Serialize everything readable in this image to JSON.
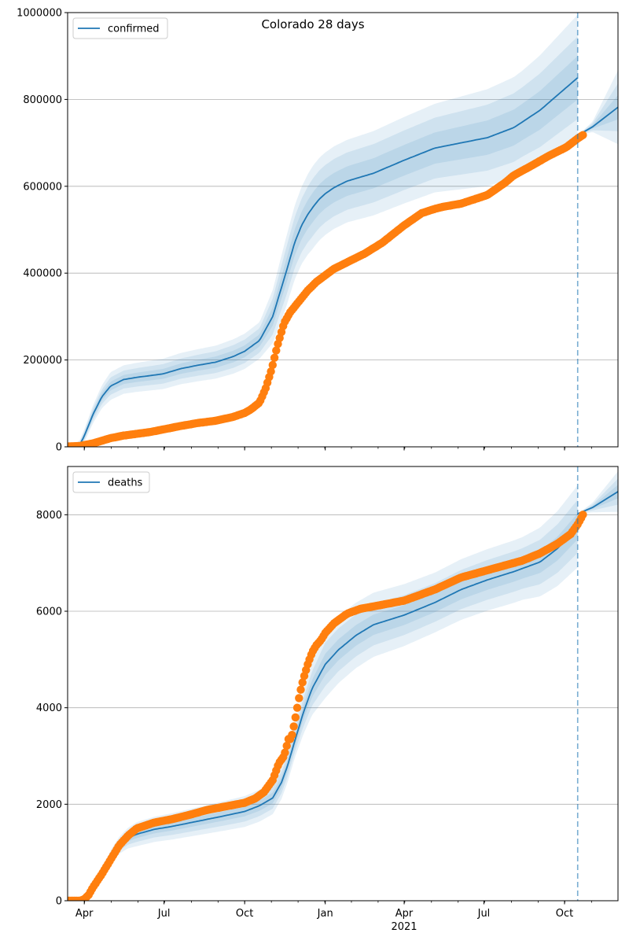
{
  "chart_data": [
    {
      "type": "line",
      "title": "Colorado 28 days",
      "legend": {
        "label": "confirmed",
        "placement": "top-left"
      },
      "xlabel": "",
      "ylabel": "",
      "ylim": [
        0,
        1000000
      ],
      "yticks": [
        0,
        200000,
        400000,
        600000,
        800000,
        1000000
      ],
      "ytick_labels": [
        "0",
        "200000",
        "400000",
        "600000",
        "800000",
        "1000000"
      ],
      "grid": "y",
      "xticks_day": [
        0,
        91,
        183,
        275,
        365,
        456,
        548
      ],
      "xtick_labels": [
        "Apr",
        "Jul",
        "Oct",
        "Jan",
        "Apr",
        "Jul",
        "Oct"
      ],
      "xrange_day": [
        -19,
        609
      ],
      "forecast_start_day": 563,
      "colors": {
        "model": "#1f77b4",
        "observed": "#ff7f0e"
      },
      "model_series": {
        "name": "confirmed",
        "x_day": [
          -19,
          -10,
          -5,
          0,
          10,
          20,
          30,
          45,
          60,
          75,
          90,
          110,
          130,
          150,
          170,
          183,
          200,
          215,
          230,
          240,
          248,
          255,
          262,
          268,
          275,
          285,
          300,
          330,
          365,
          400,
          430,
          460,
          490,
          520,
          540,
          563
        ],
        "y": [
          0,
          0,
          5000,
          25000,
          75000,
          115000,
          140000,
          155000,
          160000,
          164000,
          168000,
          180000,
          188000,
          195000,
          208000,
          220000,
          245000,
          300000,
          400000,
          470000,
          510000,
          535000,
          555000,
          570000,
          583000,
          597000,
          612000,
          630000,
          660000,
          688000,
          700000,
          712000,
          735000,
          775000,
          810000,
          850000
        ]
      },
      "model_band_half_width": [
        {
          "x_day": [
            -19,
            0,
            30,
            150,
            200,
            230,
            260,
            300,
            400,
            500,
            563
          ],
          "h": [
            0,
            15000,
            32000,
            38000,
            42000,
            80000,
            95000,
            95000,
            102000,
            118000,
            145000
          ]
        },
        {
          "x_day": [
            -19,
            0,
            30,
            150,
            200,
            230,
            260,
            300,
            400,
            500,
            563
          ],
          "h": [
            0,
            10000,
            20000,
            25000,
            28000,
            55000,
            66000,
            66000,
            70000,
            80000,
            95000
          ]
        },
        {
          "x_day": [
            -19,
            0,
            30,
            150,
            200,
            230,
            260,
            300,
            400,
            500,
            563
          ],
          "h": [
            0,
            6000,
            10000,
            13000,
            14000,
            28000,
            34000,
            34000,
            36000,
            42000,
            50000
          ]
        }
      ],
      "projection": {
        "x_day": [
          563,
          580,
          609
        ],
        "y": [
          717000,
          737000,
          782000
        ],
        "band_half_width": [
          {
            "x_day": [
              563,
              580,
              609
            ],
            "h": [
              0,
              12000,
              85000
            ]
          },
          {
            "x_day": [
              563,
              580,
              609
            ],
            "h": [
              0,
              8000,
              55000
            ]
          },
          {
            "x_day": [
              563,
              580,
              609
            ],
            "h": [
              0,
              4000,
              28000
            ]
          }
        ]
      },
      "observed": {
        "name": "observed confirmed",
        "x_day": [
          -19,
          -10,
          -5,
          0,
          10,
          30,
          45,
          60,
          75,
          90,
          110,
          130,
          150,
          170,
          183,
          190,
          200,
          207,
          214,
          220,
          228,
          235,
          245,
          255,
          265,
          275,
          285,
          300,
          320,
          340,
          365,
          385,
          400,
          410,
          430,
          460,
          480,
          490,
          510,
          530,
          550,
          563,
          569
        ],
        "y": [
          1000,
          1500,
          2000,
          4000,
          8000,
          20000,
          26000,
          30000,
          34000,
          40000,
          48000,
          55000,
          60000,
          69000,
          78000,
          86000,
          102000,
          135000,
          180000,
          230000,
          285000,
          310000,
          335000,
          360000,
          380000,
          395000,
          410000,
          425000,
          445000,
          470000,
          510000,
          538000,
          548000,
          553000,
          560000,
          580000,
          608000,
          625000,
          647000,
          670000,
          690000,
          710000,
          718000
        ]
      }
    },
    {
      "type": "line",
      "title": "",
      "legend": {
        "label": "deaths",
        "placement": "top-left"
      },
      "xlabel": "",
      "ylabel": "",
      "ylim": [
        0,
        9000
      ],
      "yticks": [
        0,
        2000,
        4000,
        6000,
        8000
      ],
      "ytick_labels": [
        "0",
        "2000",
        "4000",
        "6000",
        "8000"
      ],
      "grid": "y",
      "xticks_day": [
        0,
        91,
        183,
        275,
        365,
        456,
        548
      ],
      "xtick_labels": [
        "Apr",
        "Jul",
        "Oct",
        "Jan",
        "Apr",
        "Jul",
        "Oct"
      ],
      "xyear_label": "2021",
      "xrange_day": [
        -19,
        609
      ],
      "forecast_start_day": 563,
      "colors": {
        "model": "#1f77b4",
        "observed": "#ff7f0e"
      },
      "model_series": {
        "name": "deaths",
        "x_day": [
          -19,
          -5,
          0,
          5,
          10,
          20,
          30,
          40,
          50,
          60,
          80,
          100,
          130,
          160,
          183,
          200,
          215,
          225,
          232,
          240,
          250,
          260,
          275,
          290,
          310,
          330,
          365,
          400,
          430,
          460,
          490,
          520,
          540,
          563
        ],
        "y": [
          0,
          0,
          20,
          100,
          250,
          550,
          900,
          1150,
          1300,
          1380,
          1480,
          1540,
          1650,
          1760,
          1850,
          1970,
          2130,
          2450,
          2800,
          3300,
          3900,
          4400,
          4900,
          5200,
          5500,
          5720,
          5920,
          6180,
          6450,
          6650,
          6820,
          7020,
          7300,
          7760
        ]
      },
      "model_band_half_width": [
        {
          "x_day": [
            -19,
            0,
            60,
            183,
            240,
            275,
            400,
            500,
            563
          ],
          "h": [
            0,
            30,
            250,
            320,
            350,
            700,
            620,
            650,
            850
          ]
        },
        {
          "x_day": [
            -19,
            0,
            60,
            183,
            240,
            275,
            400,
            500,
            563
          ],
          "h": [
            0,
            20,
            160,
            210,
            230,
            450,
            400,
            420,
            550
          ]
        },
        {
          "x_day": [
            -19,
            0,
            60,
            183,
            240,
            275,
            400,
            500,
            563
          ],
          "h": [
            0,
            10,
            80,
            100,
            120,
            220,
            200,
            210,
            270
          ]
        }
      ],
      "projection": {
        "x_day": [
          563,
          580,
          609
        ],
        "y": [
          8020,
          8150,
          8480
        ],
        "band_half_width": [
          {
            "x_day": [
              563,
              580,
              609
            ],
            "h": [
              0,
              100,
              420
            ]
          },
          {
            "x_day": [
              563,
              580,
              609
            ],
            "h": [
              0,
              60,
              270
            ]
          },
          {
            "x_day": [
              563,
              580,
              609
            ],
            "h": [
              0,
              30,
              140
            ]
          }
        ]
      },
      "observed": {
        "name": "observed deaths",
        "x_day": [
          -19,
          -10,
          -5,
          0,
          5,
          10,
          20,
          30,
          40,
          50,
          60,
          80,
          100,
          120,
          140,
          160,
          183,
          195,
          205,
          215,
          222,
          228,
          233,
          236,
          240,
          243,
          246,
          250,
          255,
          260,
          265,
          270,
          275,
          285,
          300,
          315,
          330,
          365,
          400,
          430,
          460,
          480,
          500,
          520,
          540,
          555,
          563,
          569
        ],
        "y": [
          0,
          0,
          0,
          30,
          120,
          280,
          550,
          850,
          1150,
          1350,
          1500,
          1620,
          1690,
          1780,
          1880,
          1950,
          2030,
          2120,
          2250,
          2500,
          2850,
          3000,
          3350,
          3350,
          3700,
          4000,
          4300,
          4600,
          4900,
          5150,
          5300,
          5400,
          5550,
          5750,
          5950,
          6050,
          6100,
          6220,
          6450,
          6700,
          6850,
          6950,
          7050,
          7200,
          7400,
          7600,
          7800,
          8000
        ]
      }
    }
  ]
}
